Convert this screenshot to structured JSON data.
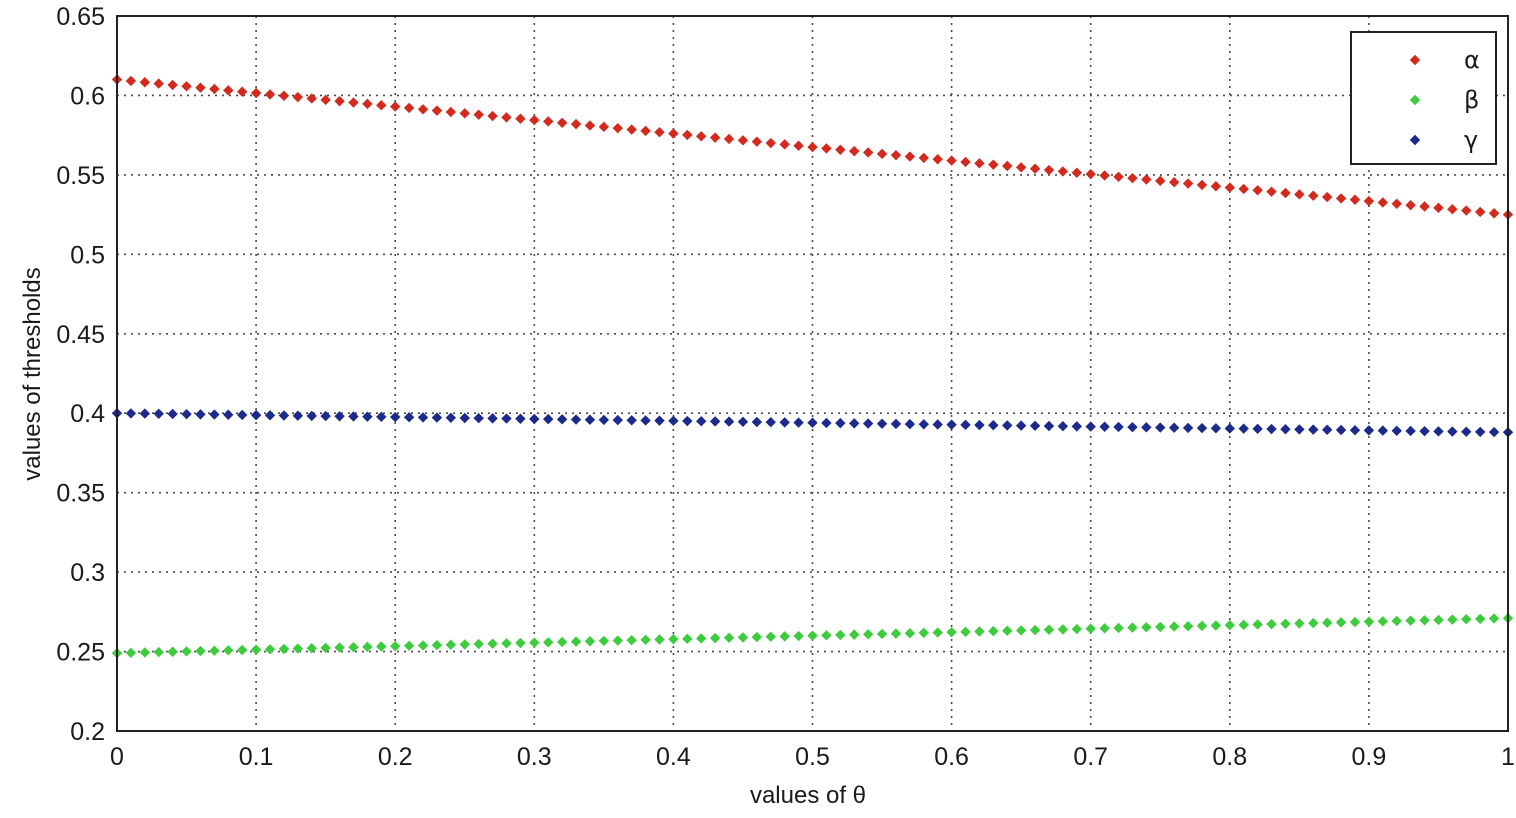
{
  "chart_data": {
    "type": "scatter",
    "title": "",
    "xlabel": "values of θ",
    "ylabel": "values of thresholds",
    "xlim": [
      0,
      1
    ],
    "ylim": [
      0.2,
      0.65
    ],
    "xticks": [
      "0",
      "0.1",
      "0.2",
      "0.3",
      "0.4",
      "0.5",
      "0.6",
      "0.7",
      "0.8",
      "0.9",
      "1"
    ],
    "yticks": [
      "0.2",
      "0.25",
      "0.3",
      "0.35",
      "0.4",
      "0.45",
      "0.5",
      "0.55",
      "0.6",
      "0.65"
    ],
    "grid": true,
    "legend_position": "top-right",
    "marker": "diamond",
    "x": {
      "start": 0,
      "stop": 1,
      "step": 0.01
    },
    "series": [
      {
        "name": "α",
        "color": "#d42a1e",
        "y_start": 0.61,
        "y_end": 0.525
      },
      {
        "name": "β",
        "color": "#3ccc3c",
        "y_start": 0.249,
        "y_end": 0.271
      },
      {
        "name": "γ",
        "color": "#1c2a8c",
        "y_start": 0.4,
        "y_end": 0.388
      }
    ]
  }
}
